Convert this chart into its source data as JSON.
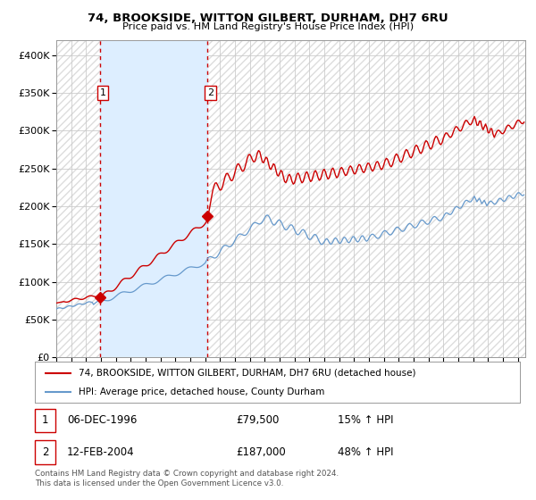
{
  "title1": "74, BROOKSIDE, WITTON GILBERT, DURHAM, DH7 6RU",
  "title2": "Price paid vs. HM Land Registry's House Price Index (HPI)",
  "legend_label_red": "74, BROOKSIDE, WITTON GILBERT, DURHAM, DH7 6RU (detached house)",
  "legend_label_blue": "HPI: Average price, detached house, County Durham",
  "footnote": "Contains HM Land Registry data © Crown copyright and database right 2024.\nThis data is licensed under the Open Government Licence v3.0.",
  "annotation1_date": "06-DEC-1996",
  "annotation1_price": "£79,500",
  "annotation1_hpi": "15% ↑ HPI",
  "annotation2_date": "12-FEB-2004",
  "annotation2_price": "£187,000",
  "annotation2_hpi": "48% ↑ HPI",
  "red_color": "#cc0000",
  "blue_color": "#6699cc",
  "shade_color": "#ddeeff",
  "hatch_color": "#dddddd",
  "bg_color": "#ffffff",
  "grid_color": "#cccccc",
  "xmin": 1994.0,
  "xmax": 2025.5,
  "ymin": 0,
  "ymax": 420000,
  "yticks": [
    0,
    50000,
    100000,
    150000,
    200000,
    250000,
    300000,
    350000,
    400000
  ],
  "ytick_labels": [
    "£0",
    "£50K",
    "£100K",
    "£150K",
    "£200K",
    "£250K",
    "£300K",
    "£350K",
    "£400K"
  ],
  "purchase1_x": 1996.92,
  "purchase1_y": 79500,
  "purchase2_x": 2004.12,
  "purchase2_y": 187000,
  "vline1_x": 1996.92,
  "vline2_x": 2004.12,
  "shade_x1": 1996.92,
  "shade_x2": 2004.12
}
